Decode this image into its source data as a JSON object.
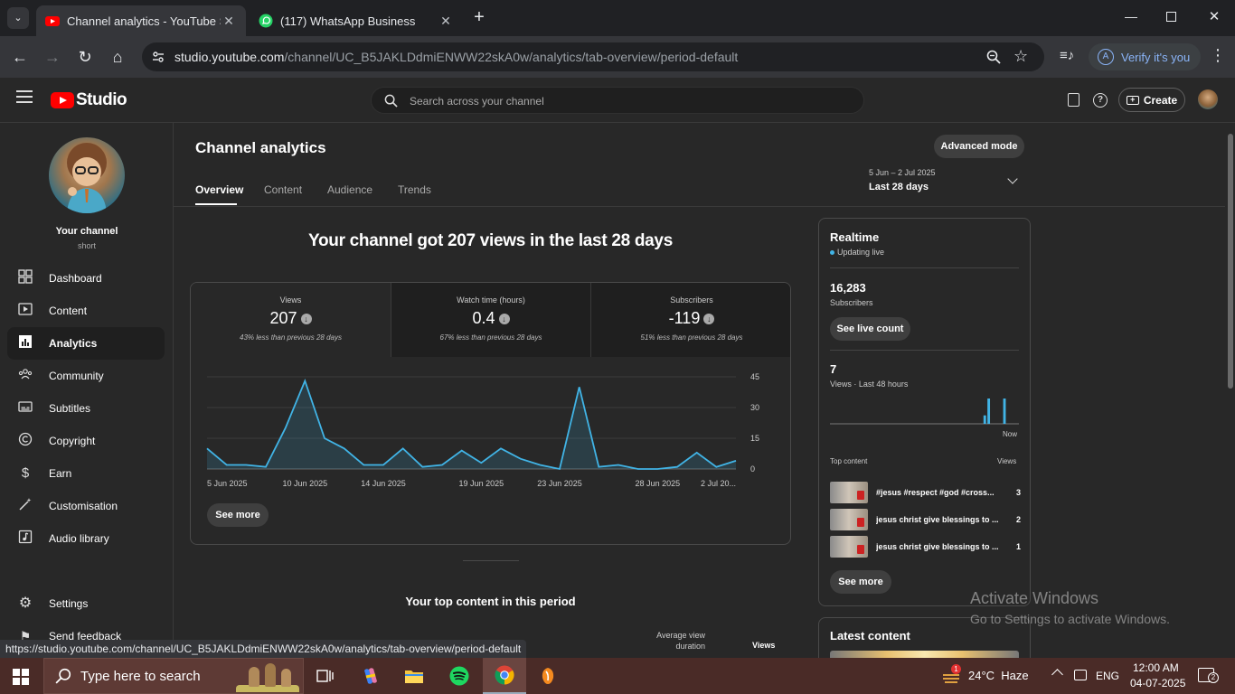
{
  "browser": {
    "tabs": [
      {
        "title": "Channel analytics - YouTube Stu",
        "active": true
      },
      {
        "title": "(117) WhatsApp Business",
        "active": false
      }
    ],
    "url_host": "studio.youtube.com",
    "url_path": "/channel/UC_B5JAKLDdmiENWW22skA0w/analytics/tab-overview/period-default",
    "verify_label": "Verify it's you",
    "verify_initial": "A",
    "status_url": "https://studio.youtube.com/channel/UC_B5JAKLDdmiENWW22skA0w/analytics/tab-overview/period-default"
  },
  "header": {
    "logo_text": "Studio",
    "search_placeholder": "Search across your channel",
    "create_label": "Create"
  },
  "sidebar": {
    "channel_title": "Your channel",
    "channel_subtitle": "short",
    "items": [
      {
        "label": "Dashboard",
        "icon": "dashboard-icon"
      },
      {
        "label": "Content",
        "icon": "content-icon"
      },
      {
        "label": "Analytics",
        "icon": "analytics-icon"
      },
      {
        "label": "Community",
        "icon": "community-icon"
      },
      {
        "label": "Subtitles",
        "icon": "subtitles-icon"
      },
      {
        "label": "Copyright",
        "icon": "copyright-icon"
      },
      {
        "label": "Earn",
        "icon": "earn-icon"
      },
      {
        "label": "Customisation",
        "icon": "customisation-icon"
      },
      {
        "label": "Audio library",
        "icon": "audio-library-icon"
      }
    ],
    "settings_label": "Settings",
    "feedback_label": "Send feedback"
  },
  "main": {
    "page_title": "Channel analytics",
    "advanced_mode_label": "Advanced mode",
    "tabs": [
      {
        "label": "Overview"
      },
      {
        "label": "Content"
      },
      {
        "label": "Audience"
      },
      {
        "label": "Trends"
      }
    ],
    "date_range": "5 Jun – 2 Jul 2025",
    "date_label": "Last 28 days",
    "headline": "Your channel got 207 views in the last 28 days",
    "metrics": [
      {
        "label": "Views",
        "value": "207",
        "comparison": "43% less than previous 28 days"
      },
      {
        "label": "Watch time (hours)",
        "value": "0.4",
        "comparison": "67% less than previous 28 days"
      },
      {
        "label": "Subscribers",
        "value": "-119",
        "comparison": "51% less than previous 28 days"
      }
    ],
    "see_more_label": "See more",
    "top_content_title": "Your top content in this period",
    "top_content_headers": {
      "avg_duration": "Average view duration",
      "views": "Views"
    }
  },
  "chart_data": {
    "type": "area",
    "x": [
      "5 Jun 2025",
      "6 Jun",
      "7 Jun",
      "8 Jun",
      "9 Jun",
      "10 Jun 2025",
      "11 Jun",
      "12 Jun",
      "13 Jun",
      "14 Jun 2025",
      "15 Jun",
      "16 Jun",
      "17 Jun",
      "18 Jun",
      "19 Jun 2025",
      "20 Jun",
      "21 Jun",
      "22 Jun",
      "23 Jun 2025",
      "24 Jun",
      "25 Jun",
      "26 Jun",
      "27 Jun",
      "28 Jun 2025",
      "29 Jun",
      "30 Jun",
      "1 Jul",
      "2 Jul 2025"
    ],
    "x_tick_labels": [
      {
        "index": 0,
        "label": "5 Jun 2025"
      },
      {
        "index": 5,
        "label": "10 Jun 2025"
      },
      {
        "index": 9,
        "label": "14 Jun 2025"
      },
      {
        "index": 14,
        "label": "19 Jun 2025"
      },
      {
        "index": 18,
        "label": "23 Jun 2025"
      },
      {
        "index": 23,
        "label": "28 Jun 2025"
      },
      {
        "index": 27,
        "label": "2 Jul 20..."
      }
    ],
    "series": [
      {
        "values": [
          10,
          2,
          2,
          1,
          20,
          43,
          15,
          10,
          2,
          2,
          10,
          1,
          2,
          9,
          3,
          10,
          5,
          2,
          0,
          40,
          1,
          2,
          0,
          0,
          1,
          8,
          1,
          4
        ]
      }
    ],
    "ylim": [
      0,
      45
    ],
    "y_ticks": [
      0,
      15,
      30,
      45
    ],
    "grid": true,
    "color": "#41b4e6"
  },
  "realtime": {
    "title": "Realtime",
    "status": "Updating live",
    "subscriber_count": "16,283",
    "subscriber_label": "Subscribers",
    "live_count_label": "See live count",
    "views_count": "7",
    "views_label": "Views · Last 48 hours",
    "now_label": "Now",
    "bars": [
      {
        "hour_index": 39,
        "value": 1
      },
      {
        "hour_index": 40,
        "value": 3
      },
      {
        "hour_index": 44,
        "value": 3
      }
    ],
    "bars_max": 3,
    "bars_total_hours": 48,
    "top_content_label": "Top content",
    "views_col_label": "Views",
    "top_content": [
      {
        "title": "#jesus #respect #god #cross...",
        "views": "3"
      },
      {
        "title": "jesus christ give blessings to ...",
        "views": "2"
      },
      {
        "title": "jesus christ give blessings to ...",
        "views": "1"
      }
    ],
    "see_more_label": "See more",
    "latest_content_title": "Latest content"
  },
  "windows": {
    "activate_title": "Activate Windows",
    "activate_sub": "Go to Settings to activate Windows.",
    "taskbar_search": "Type here to search",
    "weather": "24°C  Haze",
    "weather_badge": "1",
    "language": "ENG",
    "time": "12:00 AM",
    "date": "04-07-2025",
    "notifications": "2"
  }
}
